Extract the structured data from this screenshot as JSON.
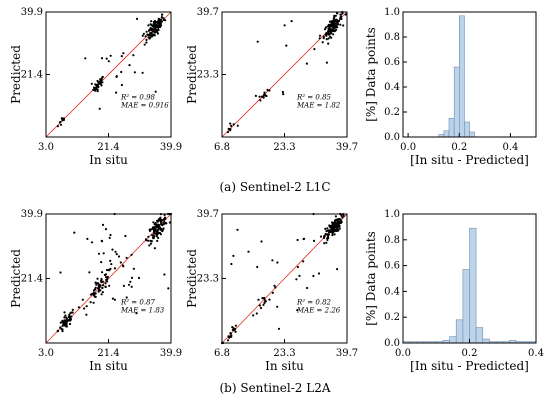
{
  "rows": [
    {
      "caption": "(a) Sentinel-2 L1C",
      "panels": [
        {
          "type": "scatter",
          "xlabel": "In situ",
          "ylabel": "Predicted",
          "range": [
            3.0,
            39.9
          ],
          "ticks": [
            "3.0",
            "21.4",
            "39.9"
          ],
          "stats": {
            "r2": "R² = 0.98",
            "mae": "MAE = 0.916"
          }
        },
        {
          "type": "scatter",
          "xlabel": "",
          "ylabel": "Predicted",
          "range": [
            6.8,
            39.7
          ],
          "ticks": [
            "6.8",
            "23.3",
            "39.7"
          ],
          "stats": {
            "r2": "R² = 0.85",
            "mae": "MAE = 1.82"
          }
        },
        {
          "type": "histogram",
          "xlabel": "[In situ - Predicted]",
          "ylabel": "[%] Data points",
          "xrange": [
            -0.02,
            0.5
          ],
          "xticks": [
            "0.0",
            "0.2",
            "0.4"
          ],
          "xtickvals": [
            0,
            0.2,
            0.4
          ],
          "yrange": [
            0,
            1.0
          ],
          "yticks": [
            "0.0",
            "0.2",
            "0.4",
            "0.6",
            "0.8",
            "1.0"
          ]
        }
      ]
    },
    {
      "caption": "(b) Sentinel-2 L2A",
      "panels": [
        {
          "type": "scatter",
          "xlabel": "In situ",
          "ylabel": "Predicted",
          "range": [
            3.0,
            39.9
          ],
          "ticks": [
            "3.0",
            "21.4",
            "39.9"
          ],
          "stats": {
            "r2": "R² = 0.87",
            "mae": "MAE = 1.83"
          }
        },
        {
          "type": "scatter",
          "xlabel": "In situ",
          "ylabel": "Predicted",
          "range": [
            6.8,
            39.7
          ],
          "ticks": [
            "6.8",
            "23.3",
            "39.7"
          ],
          "stats": {
            "r2": "R² = 0.82",
            "mae": "MAE = 2.26"
          }
        },
        {
          "type": "histogram",
          "xlabel": "[In situ - Predicted]",
          "ylabel": "[%] Data points",
          "xrange": [
            0,
            0.4
          ],
          "xticks": [
            "0.0",
            "0.2",
            "0.4"
          ],
          "xtickvals": [
            0,
            0.2,
            0.4
          ],
          "yrange": [
            0,
            1.0
          ],
          "yticks": [
            "0.0",
            "0.2",
            "0.4",
            "0.6",
            "0.8",
            "1.0"
          ]
        }
      ]
    }
  ],
  "colors": {
    "points": "#000000",
    "identity_line": "#e03020",
    "bar_fill": "#bcd3ea",
    "bar_edge": "#6f8fb3"
  },
  "chart_data": [
    {
      "type": "scatter",
      "xlabel": "In situ",
      "ylabel": "Predicted",
      "xlim": [
        3.0,
        39.9
      ],
      "ylim": [
        3.0,
        39.9
      ],
      "annotations": [
        "R² = 0.98",
        "MAE = 0.916"
      ],
      "clusters": [
        {
          "x_center": 8,
          "y_center": 8,
          "spread": 1.2,
          "n": 10
        },
        {
          "x_center": 18.5,
          "y_center": 19,
          "spread": 1.3,
          "n": 35
        },
        {
          "x_center": 35,
          "y_center": 35,
          "spread": 2.5,
          "n": 110
        },
        {
          "x_center": 25,
          "y_center": 24,
          "spread": 6,
          "n": 20
        }
      ]
    },
    {
      "type": "scatter",
      "xlabel": "",
      "ylabel": "Predicted",
      "xlim": [
        6.8,
        39.7
      ],
      "ylim": [
        6.8,
        39.7
      ],
      "annotations": [
        "R² = 0.85",
        "MAE = 1.82"
      ],
      "clusters": [
        {
          "x_center": 9,
          "y_center": 9,
          "spread": 1.2,
          "n": 8
        },
        {
          "x_center": 18,
          "y_center": 19,
          "spread": 1.2,
          "n": 12
        },
        {
          "x_center": 36,
          "y_center": 36,
          "spread": 2,
          "n": 110
        },
        {
          "x_center": 26,
          "y_center": 26,
          "spread": 7,
          "n": 12
        }
      ]
    },
    {
      "type": "bar",
      "xlabel": "[In situ - Predicted]",
      "ylabel": "[%] Data points",
      "xlim": [
        -0.02,
        0.5
      ],
      "ylim": [
        0,
        1.0
      ],
      "bin_edges": [
        0.12,
        0.14,
        0.16,
        0.18,
        0.2,
        0.22,
        0.24,
        0.26
      ],
      "values": [
        0.02,
        0.05,
        0.15,
        0.56,
        0.97,
        0.12,
        0.04
      ]
    },
    {
      "type": "scatter",
      "xlabel": "In situ",
      "ylabel": "Predicted",
      "xlim": [
        3.0,
        39.9
      ],
      "ylim": [
        3.0,
        39.9
      ],
      "annotations": [
        "R² = 0.87",
        "MAE = 1.83"
      ],
      "clusters": [
        {
          "x_center": 9,
          "y_center": 9,
          "spread": 2,
          "n": 60
        },
        {
          "x_center": 19,
          "y_center": 20,
          "spread": 3,
          "n": 60
        },
        {
          "x_center": 36,
          "y_center": 36,
          "spread": 2.5,
          "n": 120
        },
        {
          "x_center": 24,
          "y_center": 26,
          "spread": 8,
          "n": 45
        }
      ]
    },
    {
      "type": "scatter",
      "xlabel": "In situ",
      "ylabel": "Predicted",
      "xlim": [
        6.8,
        39.7
      ],
      "ylim": [
        6.8,
        39.7
      ],
      "annotations": [
        "R² = 0.82",
        "MAE = 2.26"
      ],
      "clusters": [
        {
          "x_center": 9,
          "y_center": 9,
          "spread": 1.5,
          "n": 20
        },
        {
          "x_center": 18,
          "y_center": 18,
          "spread": 2,
          "n": 15
        },
        {
          "x_center": 36,
          "y_center": 36,
          "spread": 2,
          "n": 110
        },
        {
          "x_center": 25,
          "y_center": 26,
          "spread": 7,
          "n": 25
        }
      ]
    },
    {
      "type": "bar",
      "xlabel": "[In situ - Predicted]",
      "ylabel": "[%] Data points",
      "xlim": [
        0,
        0.4
      ],
      "ylim": [
        0,
        1.0
      ],
      "bin_edges": [
        0.0,
        0.02,
        0.04,
        0.06,
        0.08,
        0.1,
        0.12,
        0.14,
        0.16,
        0.18,
        0.2,
        0.22,
        0.24,
        0.26,
        0.28,
        0.3,
        0.32,
        0.34,
        0.36,
        0.38,
        0.4
      ],
      "values": [
        0.01,
        0.01,
        0.01,
        0.01,
        0.01,
        0.01,
        0.02,
        0.05,
        0.18,
        0.57,
        0.89,
        0.12,
        0.03,
        0.01,
        0.01,
        0.01,
        0.02,
        0.01,
        0.01,
        0.01
      ]
    }
  ]
}
